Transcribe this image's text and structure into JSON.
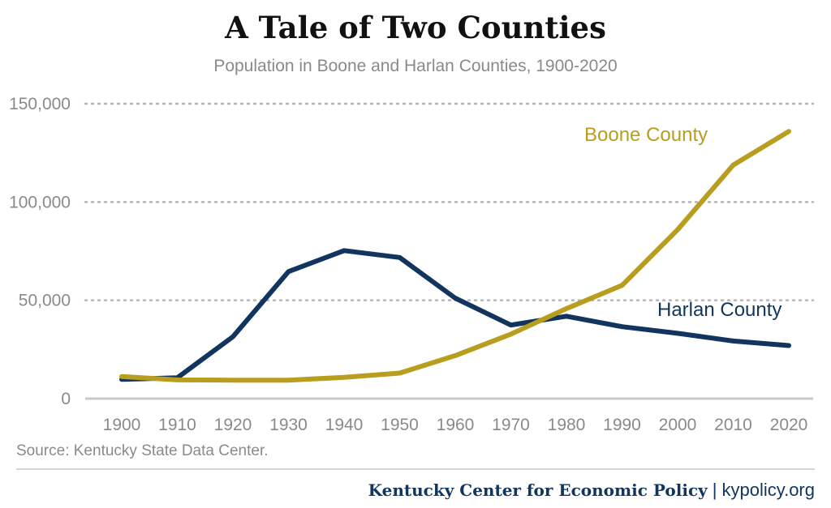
{
  "chart_data": {
    "type": "line",
    "title": "A Tale of Two Counties",
    "subtitle": "Population in Boone and Harlan Counties, 1900-2020",
    "xlabel": "",
    "ylabel": "",
    "x": [
      "1900",
      "1910",
      "1920",
      "1930",
      "1940",
      "1950",
      "1960",
      "1970",
      "1980",
      "1990",
      "2000",
      "2010",
      "2020"
    ],
    "ylim": [
      0,
      150000
    ],
    "yticks": [
      0,
      50000,
      100000,
      150000
    ],
    "ytick_labels": [
      "0",
      "50,000",
      "100,000",
      "150,000"
    ],
    "grid": true,
    "series": [
      {
        "name": "Boone County",
        "color": "#b89d1f",
        "values": [
          11200,
          9500,
          9400,
          9400,
          10800,
          13000,
          21900,
          32800,
          45800,
          57600,
          85900,
          118800,
          135900
        ]
      },
      {
        "name": "Harlan County",
        "color": "#11355f",
        "values": [
          9800,
          10600,
          31500,
          64600,
          75300,
          71800,
          51100,
          37400,
          41900,
          36600,
          33200,
          29300,
          27000
        ]
      }
    ]
  },
  "source": "Source: Kentucky State Data Center.",
  "footer": {
    "org": "Kentucky Center for Economic Policy",
    "separator": "|",
    "site": "kypolicy.org"
  },
  "colors": {
    "boone": "#b89d1f",
    "harlan": "#11355f",
    "grid": "#b5b5b5",
    "text_gray": "#8a8a8a"
  }
}
